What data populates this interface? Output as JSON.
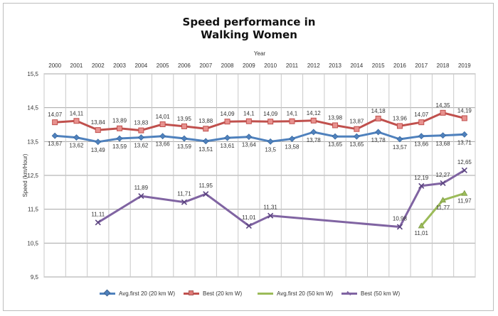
{
  "chart_data": {
    "type": "line",
    "title_line1": "Speed performance in",
    "title_line2": "Walking Women",
    "xlabel": "Year",
    "ylabel": "Speed (km/Hour)",
    "categories": [
      "2000",
      "2001",
      "2002",
      "2003",
      "2004",
      "2005",
      "2006",
      "2007",
      "2008",
      "2009",
      "2010",
      "2011",
      "2012",
      "2013",
      "2014",
      "2015",
      "2016",
      "2017",
      "2018",
      "2019"
    ],
    "y_ticks": [
      "15,5",
      "14,5",
      "13,5",
      "12,5",
      "11,5",
      "10,5",
      "9,5"
    ],
    "ylim": [
      9.5,
      15.5
    ],
    "grid": true,
    "legend_position": "bottom",
    "series": [
      {
        "name": "Avg.first 20 (20 km W)",
        "color": "#4f81bd",
        "marker": "diamond",
        "values": [
          13.67,
          13.62,
          13.49,
          13.59,
          13.62,
          13.66,
          13.59,
          13.51,
          13.61,
          13.64,
          13.5,
          13.58,
          13.78,
          13.65,
          13.65,
          13.78,
          13.57,
          13.66,
          13.68,
          13.71
        ],
        "labels": [
          "13,67",
          "13,62",
          "13,49",
          "13,59",
          "13,62",
          "13,66",
          "13,59",
          "13,51",
          "13,61",
          "13,64",
          "13,5",
          "13,58",
          "13,78",
          "13,65",
          "13,65",
          "13,78",
          "13,57",
          "13,66",
          "13,68",
          "13,71"
        ]
      },
      {
        "name": "Best (20 km W)",
        "color": "#c0504d",
        "marker": "square",
        "values": [
          14.07,
          14.11,
          13.84,
          13.89,
          13.83,
          14.01,
          13.95,
          13.88,
          14.09,
          14.1,
          14.09,
          14.1,
          14.12,
          13.98,
          13.87,
          14.18,
          13.96,
          14.07,
          14.35,
          14.19
        ],
        "labels": [
          "14,07",
          "14,11",
          "13,84",
          "13,89",
          "13,83",
          "14,01",
          "13,95",
          "13,88",
          "14,09",
          "14,1",
          "14,09",
          "14,1",
          "14,12",
          "13,98",
          "13,87",
          "14,18",
          "13,96",
          "14,07",
          "14,35",
          "14,19"
        ]
      },
      {
        "name": "Avg.first 20 (50 km W)",
        "color": "#9bbb59",
        "marker": "triangle",
        "values": [
          null,
          null,
          null,
          null,
          null,
          null,
          null,
          null,
          null,
          null,
          null,
          null,
          null,
          null,
          null,
          null,
          null,
          11.01,
          11.77,
          11.97
        ],
        "labels": [
          null,
          null,
          null,
          null,
          null,
          null,
          null,
          null,
          null,
          null,
          null,
          null,
          null,
          null,
          null,
          null,
          null,
          "11,01",
          "11,77",
          "11,97"
        ]
      },
      {
        "name": "Best (50 km W)",
        "color": "#8064a2",
        "marker": "x",
        "points": [
          [
            2002,
            11.11
          ],
          [
            2004,
            11.89
          ],
          [
            2006,
            11.71
          ],
          [
            2007,
            11.95
          ],
          [
            2009,
            11.01
          ],
          [
            2010,
            11.31
          ],
          [
            2016,
            10.98
          ],
          [
            2017,
            12.19
          ],
          [
            2018,
            12.27
          ],
          [
            2019,
            12.65
          ]
        ],
        "labels": [
          "11,11",
          "11,89",
          "11,71",
          "11,95",
          "11,01",
          "11,31",
          "10,98",
          "12,19",
          "12,27",
          "12,65"
        ]
      }
    ]
  }
}
